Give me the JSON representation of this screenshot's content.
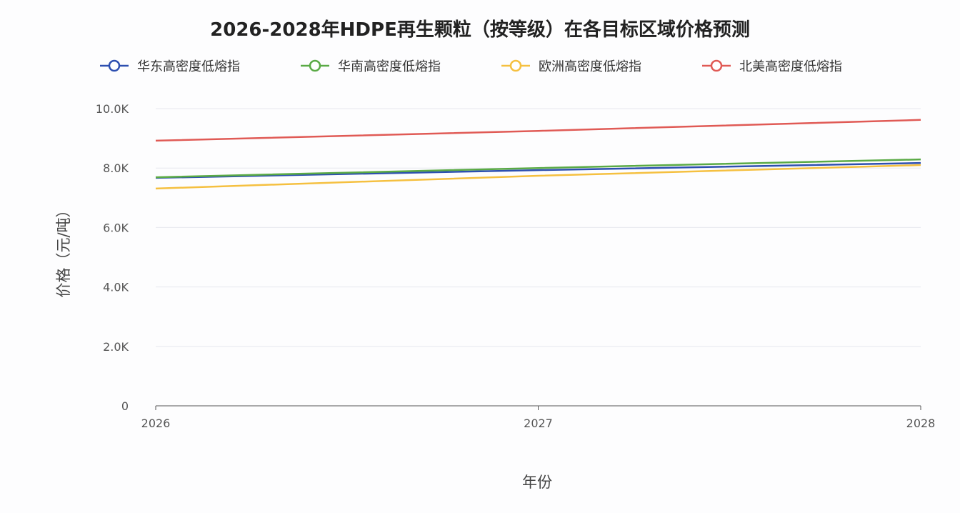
{
  "chart_data": {
    "type": "line",
    "title": "2026-2028年HDPE再生颗粒（按等级）在各目标区域价格预测",
    "xlabel": "年份",
    "ylabel": "价格（元/吨）",
    "x": [
      "2026",
      "2027",
      "2028"
    ],
    "ylim": [
      0,
      10000
    ],
    "yticks": [
      0,
      2000,
      4000,
      6000,
      8000,
      10000
    ],
    "ytick_labels": [
      "0",
      "2.0K",
      "4.0K",
      "6.0K",
      "8.0K",
      "10.0K"
    ],
    "grid": true,
    "legend_position": "top",
    "series": [
      {
        "name": "华东高密度低熔指",
        "color": "#2d4fb0",
        "values": [
          7670,
          7930,
          8170
        ]
      },
      {
        "name": "华南高密度低熔指",
        "color": "#5aaa45",
        "values": [
          7690,
          8000,
          8290
        ]
      },
      {
        "name": "欧洲高密度低熔指",
        "color": "#f5c040",
        "values": [
          7310,
          7740,
          8100
        ]
      },
      {
        "name": "北美高密度低熔指",
        "color": "#e05a55",
        "values": [
          8920,
          9250,
          9620
        ]
      }
    ]
  }
}
